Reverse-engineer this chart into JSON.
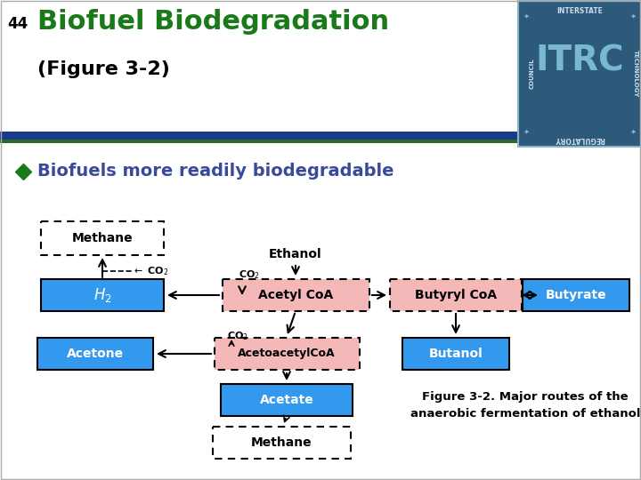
{
  "title_number": "44",
  "title_main": "Biofuel Biodegradation",
  "title_sub": "(Figure 3-2)",
  "title_color": "#1a7a1a",
  "title_sub_color": "#000000",
  "bullet_text": "Biofuels more readily biodegradable",
  "bullet_color": "#3a4a9a",
  "bullet_diamond_color": "#1a7a1a",
  "bg_color": "#ffffff",
  "blue_bar_color": "#1a3a8a",
  "green_bar_color": "#2d6a2d",
  "box_blue": "#3399ee",
  "box_pink": "#f5b8b8",
  "caption": "Figure 3-2. Major routes of the\nanaerobic fermentation of ethanol",
  "fig_w": 7.2,
  "fig_h": 5.4,
  "dpi": 100
}
